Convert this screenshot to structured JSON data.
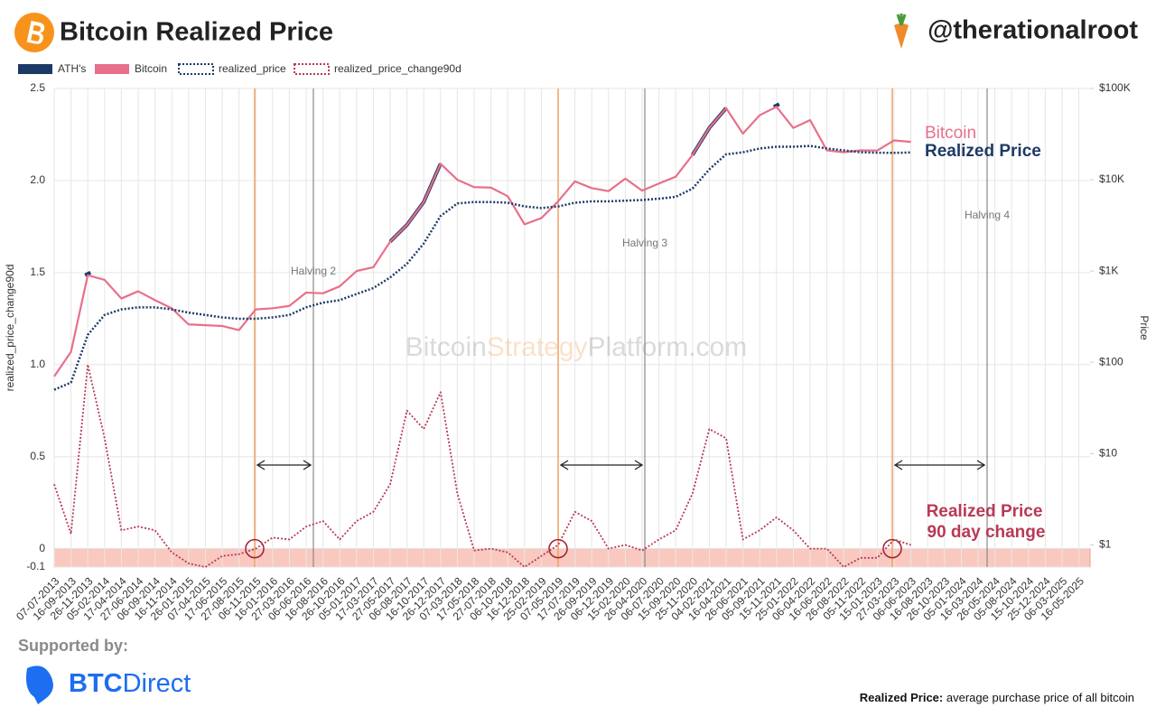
{
  "header": {
    "title": "Bitcoin Realized Price",
    "handle": "@therationalroot"
  },
  "chart_data": {
    "type": "line",
    "x": [
      "07-07-2013",
      "16-09-2013",
      "26-11-2013",
      "05-02-2014",
      "17-04-2014",
      "27-06-2014",
      "06-09-2014",
      "16-11-2014",
      "26-01-2015",
      "07-04-2015",
      "17-06-2015",
      "27-08-2015",
      "06-11-2015",
      "16-01-2016",
      "27-03-2016",
      "06-06-2016",
      "16-08-2016",
      "26-10-2016",
      "05-01-2017",
      "17-03-2017",
      "27-05-2017",
      "06-08-2017",
      "16-10-2017",
      "26-12-2017",
      "07-03-2018",
      "17-05-2018",
      "27-07-2018",
      "06-10-2018",
      "16-12-2018",
      "25-02-2019",
      "07-05-2019",
      "17-07-2019",
      "26-09-2019",
      "06-12-2019",
      "15-02-2020",
      "26-04-2020",
      "06-07-2020",
      "15-09-2020",
      "25-11-2020",
      "04-02-2021",
      "16-04-2021",
      "26-06-2021",
      "05-09-2021",
      "15-11-2021",
      "25-01-2022",
      "06-04-2022",
      "16-06-2022",
      "26-08-2022",
      "05-11-2022",
      "15-01-2023",
      "27-03-2023",
      "06-06-2023",
      "16-08-2023",
      "26-10-2023",
      "05-01-2024",
      "16-03-2024",
      "26-05-2024",
      "05-08-2024",
      "15-10-2024",
      "25-12-2024",
      "06-03-2025",
      "16-05-2025"
    ],
    "series": [
      {
        "name": "ATH's",
        "color": "#1d3a66",
        "axis": "y2",
        "values": [
          null,
          null,
          900,
          null,
          null,
          null,
          null,
          null,
          null,
          null,
          null,
          null,
          null,
          null,
          null,
          null,
          null,
          null,
          null,
          null,
          2100,
          3200,
          5700,
          15000,
          null,
          null,
          null,
          null,
          null,
          null,
          null,
          null,
          null,
          null,
          null,
          null,
          null,
          null,
          18700,
          37000,
          61000,
          null,
          null,
          63000,
          null,
          null,
          null,
          null,
          null,
          null,
          null,
          null,
          null,
          null,
          null,
          null,
          null,
          null,
          null,
          null,
          null,
          null
        ]
      },
      {
        "name": "Bitcoin",
        "color": "#e8708a",
        "axis": "y2",
        "values": [
          70,
          130,
          900,
          800,
          500,
          600,
          480,
          390,
          260,
          255,
          250,
          225,
          380,
          390,
          415,
          580,
          570,
          680,
          1000,
          1100,
          2100,
          3200,
          5700,
          15000,
          10000,
          8300,
          8200,
          6600,
          3250,
          3800,
          5800,
          9600,
          8100,
          7500,
          10300,
          7600,
          9100,
          10800,
          18700,
          37000,
          61000,
          32000,
          51000,
          63000,
          37000,
          45000,
          21000,
          20000,
          21000,
          20900,
          27000,
          26000,
          null,
          null,
          null,
          null,
          null,
          null,
          null,
          null,
          null,
          null
        ]
      },
      {
        "name": "realized_price",
        "color": "#1d3a66",
        "axis": "y2",
        "values": [
          50,
          60,
          200,
          330,
          380,
          400,
          400,
          380,
          350,
          330,
          310,
          300,
          300,
          310,
          330,
          400,
          450,
          480,
          560,
          650,
          850,
          1200,
          2000,
          4000,
          5500,
          5700,
          5700,
          5600,
          5100,
          4900,
          5100,
          5600,
          5800,
          5800,
          5900,
          6000,
          6200,
          6500,
          8000,
          13000,
          19000,
          20000,
          22000,
          23000,
          23000,
          23500,
          22000,
          21000,
          20000,
          19800,
          19700,
          19900,
          null,
          null,
          null,
          null,
          null,
          null,
          null,
          null,
          null,
          null
        ]
      },
      {
        "name": "realized_price_change90d",
        "color": "#b83a55",
        "values": [
          0.35,
          0.08,
          1.0,
          0.6,
          0.1,
          0.12,
          0.1,
          -0.02,
          -0.08,
          -0.1,
          -0.04,
          -0.03,
          0.0,
          0.06,
          0.05,
          0.12,
          0.15,
          0.05,
          0.15,
          0.2,
          0.35,
          0.75,
          0.65,
          0.85,
          0.3,
          -0.01,
          0.0,
          -0.02,
          -0.1,
          -0.04,
          0.02,
          0.2,
          0.15,
          0.0,
          0.02,
          -0.01,
          0.05,
          0.1,
          0.3,
          0.65,
          0.6,
          0.05,
          0.1,
          0.17,
          0.1,
          0.0,
          0.0,
          -0.1,
          -0.05,
          -0.05,
          0.05,
          0.02,
          null,
          null,
          null,
          null,
          null,
          null,
          null,
          null,
          null,
          null
        ]
      }
    ],
    "y_label": "realized_price_change90d",
    "y2_label": "Price",
    "ylim": [
      -0.1,
      2.5
    ],
    "yticks": [
      -0.1,
      0,
      0.5,
      {
        "value": 1,
        "label": "1.0"
      },
      1.5,
      {
        "value": 2,
        "label": "2.0"
      },
      2.5
    ],
    "y2lim": [
      0.57,
      100000
    ],
    "y2_log": true,
    "y2ticks": [
      {
        "value": 1,
        "label": "$1"
      },
      {
        "value": 10,
        "label": "$10"
      },
      {
        "value": 100,
        "label": "$100"
      },
      {
        "value": 1000,
        "label": "$1K"
      },
      {
        "value": 10000,
        "label": "$10K"
      },
      {
        "value": 100000,
        "label": "$100K"
      }
    ],
    "grid": true,
    "legend": "top-left",
    "annotations": {
      "halvings": [
        "Halving 2",
        "Halving 3",
        "Halving 4"
      ],
      "bitcoin": "Bitcoin",
      "realized": "Realized Price",
      "change": [
        "Realized Price",
        "90 day change"
      ]
    },
    "watermark": [
      "Bitcoin",
      "Strategy",
      "Platform.com"
    ]
  },
  "footer": {
    "supported": "Supported by:",
    "brand": [
      "BTC",
      "Direct"
    ],
    "note_bold": "Realized Price:",
    "note": "average purchase price of all bitcoin"
  }
}
